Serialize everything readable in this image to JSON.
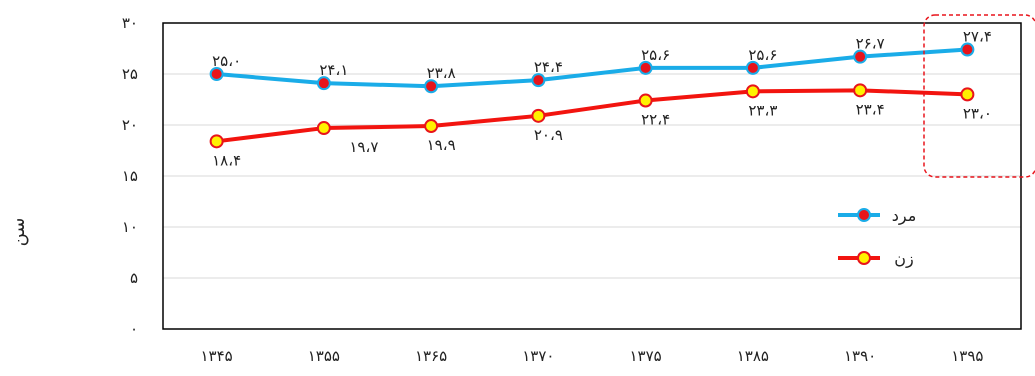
{
  "chart_data": {
    "type": "line",
    "categories": [
      "۱۳۴۵",
      "۱۳۵۵",
      "۱۳۶۵",
      "۱۳۷۰",
      "۱۳۷۵",
      "۱۳۸۵",
      "۱۳۹۰",
      "۱۳۹۵"
    ],
    "ylabel": "سن",
    "ylim": [
      0,
      30
    ],
    "yticks": [
      0,
      5,
      10,
      15,
      20,
      25,
      30
    ],
    "ytick_labels": [
      "۰",
      "۵",
      "۱۰",
      "۱۵",
      "۲۰",
      "۲۵",
      "۳۰"
    ],
    "grid": true,
    "legend_position": "right",
    "highlight_last_category": true,
    "series": [
      {
        "name": "مرد",
        "values": [
          25.0,
          24.1,
          23.8,
          24.4,
          25.6,
          25.6,
          26.7,
          27.4
        ],
        "labels": [
          "۲۵،۰",
          "۲۴،۱",
          "۲۳،۸",
          "۲۴،۴",
          "۲۵،۶",
          "۲۵،۶",
          "۲۶،۷",
          "۲۷،۴"
        ],
        "line_color": "#1AACE8",
        "marker_fill": "#E8141B",
        "marker_stroke": "#1AACE8"
      },
      {
        "name": "زن",
        "values": [
          18.4,
          19.7,
          19.9,
          20.9,
          22.4,
          23.3,
          23.4,
          23.0
        ],
        "labels": [
          "۱۸،۴",
          "۱۹،۷",
          "۱۹،۹",
          "۲۰،۹",
          "۲۲،۴",
          "۲۳،۳",
          "۲۳،۴",
          "۲۳،۰"
        ],
        "line_color": "#F2140F",
        "marker_fill": "#FFF200",
        "marker_stroke": "#E8141B"
      }
    ]
  }
}
